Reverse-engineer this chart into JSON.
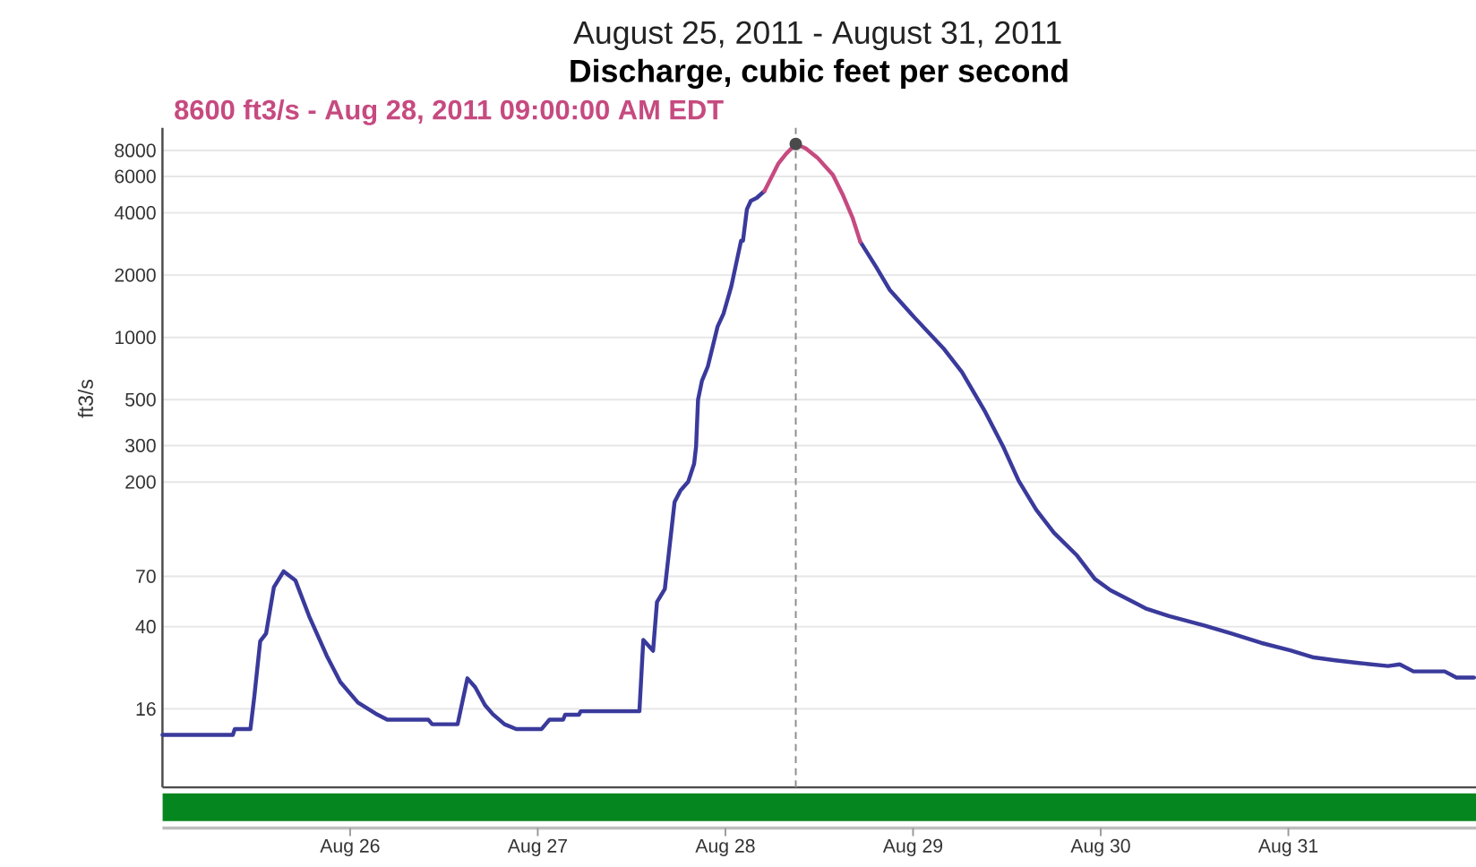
{
  "chart_data": {
    "type": "line",
    "title": "August 25, 2011 - August 31, 2011",
    "subtitle": "Discharge, cubic feet per second",
    "ylabel": "ft3/s",
    "annotations": [
      {
        "text": "8600 ft3/s - Aug 28, 2011 09:00:00 AM EDT",
        "x": "2011-08-28T09:00",
        "y": 8600
      }
    ],
    "series": [
      {
        "color": "#3a3a9c",
        "x": [
          "2011-08-25T00:00",
          "2011-08-25T09:00",
          "2011-08-25T09:15",
          "2011-08-25T11:15",
          "2011-08-25T11:45",
          "2011-08-25T12:30",
          "2011-08-25T13:15",
          "2011-08-25T14:15",
          "2011-08-25T15:30",
          "2011-08-25T17:00",
          "2011-08-25T18:45",
          "2011-08-25T21:00",
          "2011-08-25T22:45",
          "2011-08-26T01:00",
          "2011-08-26T03:15",
          "2011-08-26T04:45",
          "2011-08-26T10:00",
          "2011-08-26T10:30",
          "2011-08-26T13:45",
          "2011-08-26T15:00",
          "2011-08-26T16:00",
          "2011-08-26T17:15",
          "2011-08-26T18:15",
          "2011-08-26T19:45",
          "2011-08-26T21:15",
          "2011-08-27T00:30",
          "2011-08-27T01:00",
          "2011-08-27T01:30",
          "2011-08-27T03:15",
          "2011-08-27T03:30",
          "2011-08-27T05:15",
          "2011-08-27T05:30",
          "2011-08-27T13:00",
          "2011-08-27T13:30",
          "2011-08-27T14:45",
          "2011-08-27T15:15",
          "2011-08-27T16:15",
          "2011-08-27T17:30",
          "2011-08-27T18:15",
          "2011-08-27T19:15",
          "2011-08-27T20:00",
          "2011-08-27T20:15",
          "2011-08-27T20:30",
          "2011-08-27T21:00",
          "2011-08-27T21:45",
          "2011-08-27T23:00",
          "2011-08-27T23:45",
          "2011-08-28T00:45",
          "2011-08-28T02:00",
          "2011-08-28T02:15",
          "2011-08-28T02:45",
          "2011-08-28T03:15",
          "2011-08-28T04:00",
          "2011-08-28T05:00",
          "2011-08-28T09:00",
          "2011-08-28T17:15",
          "2011-08-28T19:15",
          "2011-08-28T21:00",
          "2011-08-29T00:15",
          "2011-08-29T04:00",
          "2011-08-29T06:15",
          "2011-08-29T09:15",
          "2011-08-29T11:30",
          "2011-08-29T13:30",
          "2011-08-29T15:45",
          "2011-08-29T18:00",
          "2011-08-29T21:00",
          "2011-08-29T23:15",
          "2011-08-30T01:15",
          "2011-08-30T05:45",
          "2011-08-30T08:45",
          "2011-08-30T13:15",
          "2011-08-30T16:45",
          "2011-08-30T20:30",
          "2011-08-31T00:15",
          "2011-08-31T03:15",
          "2011-08-31T06:00",
          "2011-08-31T09:00",
          "2011-08-31T12:45",
          "2011-08-31T14:15",
          "2011-08-31T16:00",
          "2011-08-31T20:00",
          "2011-08-31T21:30",
          "2011-08-31T23:45"
        ],
        "values": [
          12,
          12,
          12.8,
          12.8,
          18.4,
          34,
          37,
          62,
          74,
          67,
          45,
          29,
          21.6,
          17.2,
          15.2,
          14.2,
          14.2,
          13.5,
          13.5,
          22.5,
          20.4,
          16.7,
          15.1,
          13.5,
          12.8,
          12.8,
          13.5,
          14.2,
          14.2,
          15,
          15,
          15.6,
          15.6,
          34.5,
          30.6,
          52.6,
          60.8,
          160,
          182,
          201,
          245,
          297,
          500,
          617,
          723,
          1128,
          1300,
          1760,
          2930,
          2930,
          4160,
          4570,
          4720,
          5100,
          null,
          2900,
          2200,
          1700,
          1240,
          875,
          680,
          435,
          298,
          203,
          147,
          114,
          88,
          68,
          60,
          49,
          45,
          40.5,
          37,
          33.4,
          30.7,
          28.4,
          27.5,
          26.7,
          25.8,
          26.3,
          24.3,
          24.3,
          22.7,
          22.7
        ]
      },
      {
        "color": "#c64a80",
        "x": [
          "2011-08-28T05:00",
          "2011-08-28T06:45",
          "2011-08-28T07:45",
          "2011-08-28T09:00",
          "2011-08-28T10:15",
          "2011-08-28T11:45",
          "2011-08-28T13:45",
          "2011-08-28T15:00",
          "2011-08-28T16:15",
          "2011-08-28T17:15"
        ],
        "values": [
          5100,
          6900,
          7700,
          8600,
          8200,
          7400,
          6100,
          4900,
          3800,
          2900
        ]
      }
    ],
    "xlim": [
      "2011-08-25T00:00",
      "2011-09-01T00:00"
    ],
    "xticks": [
      {
        "value": "2011-08-26",
        "label": "Aug 26"
      },
      {
        "value": "2011-08-27",
        "label": "Aug 27"
      },
      {
        "value": "2011-08-28",
        "label": "Aug 28"
      },
      {
        "value": "2011-08-29",
        "label": "Aug 29"
      },
      {
        "value": "2011-08-30",
        "label": "Aug 30"
      },
      {
        "value": "2011-08-31",
        "label": "Aug 31"
      }
    ],
    "ylim": [
      6.7,
      10300
    ],
    "yticks": [
      16,
      40,
      70,
      200,
      300,
      500,
      1000,
      2000,
      4000,
      6000,
      8000
    ],
    "log": true,
    "grid": "y",
    "ref_lines": [
      {
        "axis": "x",
        "value": "2011-08-28T09:00",
        "color": "#8c8c8c",
        "line_style": "dashed"
      }
    ]
  }
}
